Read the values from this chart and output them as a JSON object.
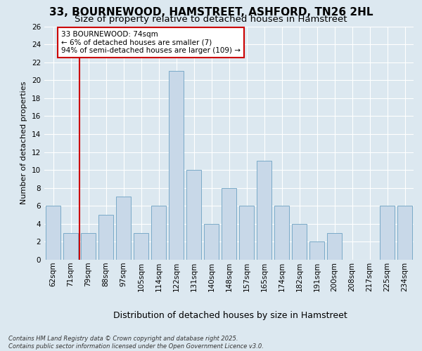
{
  "title_line1": "33, BOURNEWOOD, HAMSTREET, ASHFORD, TN26 2HL",
  "title_line2": "Size of property relative to detached houses in Hamstreet",
  "xlabel": "Distribution of detached houses by size in Hamstreet",
  "ylabel": "Number of detached properties",
  "categories": [
    "62sqm",
    "71sqm",
    "79sqm",
    "88sqm",
    "97sqm",
    "105sqm",
    "114sqm",
    "122sqm",
    "131sqm",
    "140sqm",
    "148sqm",
    "157sqm",
    "165sqm",
    "174sqm",
    "182sqm",
    "191sqm",
    "200sqm",
    "208sqm",
    "217sqm",
    "225sqm",
    "234sqm"
  ],
  "values": [
    6,
    3,
    3,
    5,
    7,
    3,
    6,
    21,
    10,
    4,
    8,
    6,
    11,
    6,
    4,
    2,
    3,
    0,
    0,
    6,
    6
  ],
  "bar_color": "#c8d8e8",
  "bar_edge_color": "#7aaac8",
  "highlight_color": "#cc0000",
  "annotation_text": "33 BOURNEWOOD: 74sqm\n← 6% of detached houses are smaller (7)\n94% of semi-detached houses are larger (109) →",
  "ylim": [
    0,
    26
  ],
  "yticks": [
    0,
    2,
    4,
    6,
    8,
    10,
    12,
    14,
    16,
    18,
    20,
    22,
    24,
    26
  ],
  "bg_color": "#dce8f0",
  "footer_text": "Contains HM Land Registry data © Crown copyright and database right 2025.\nContains public sector information licensed under the Open Government Licence v3.0.",
  "title_fontsize": 11,
  "subtitle_fontsize": 9.5,
  "tick_fontsize": 7.5,
  "xlabel_fontsize": 9,
  "ylabel_fontsize": 8,
  "annot_fontsize": 7.5
}
